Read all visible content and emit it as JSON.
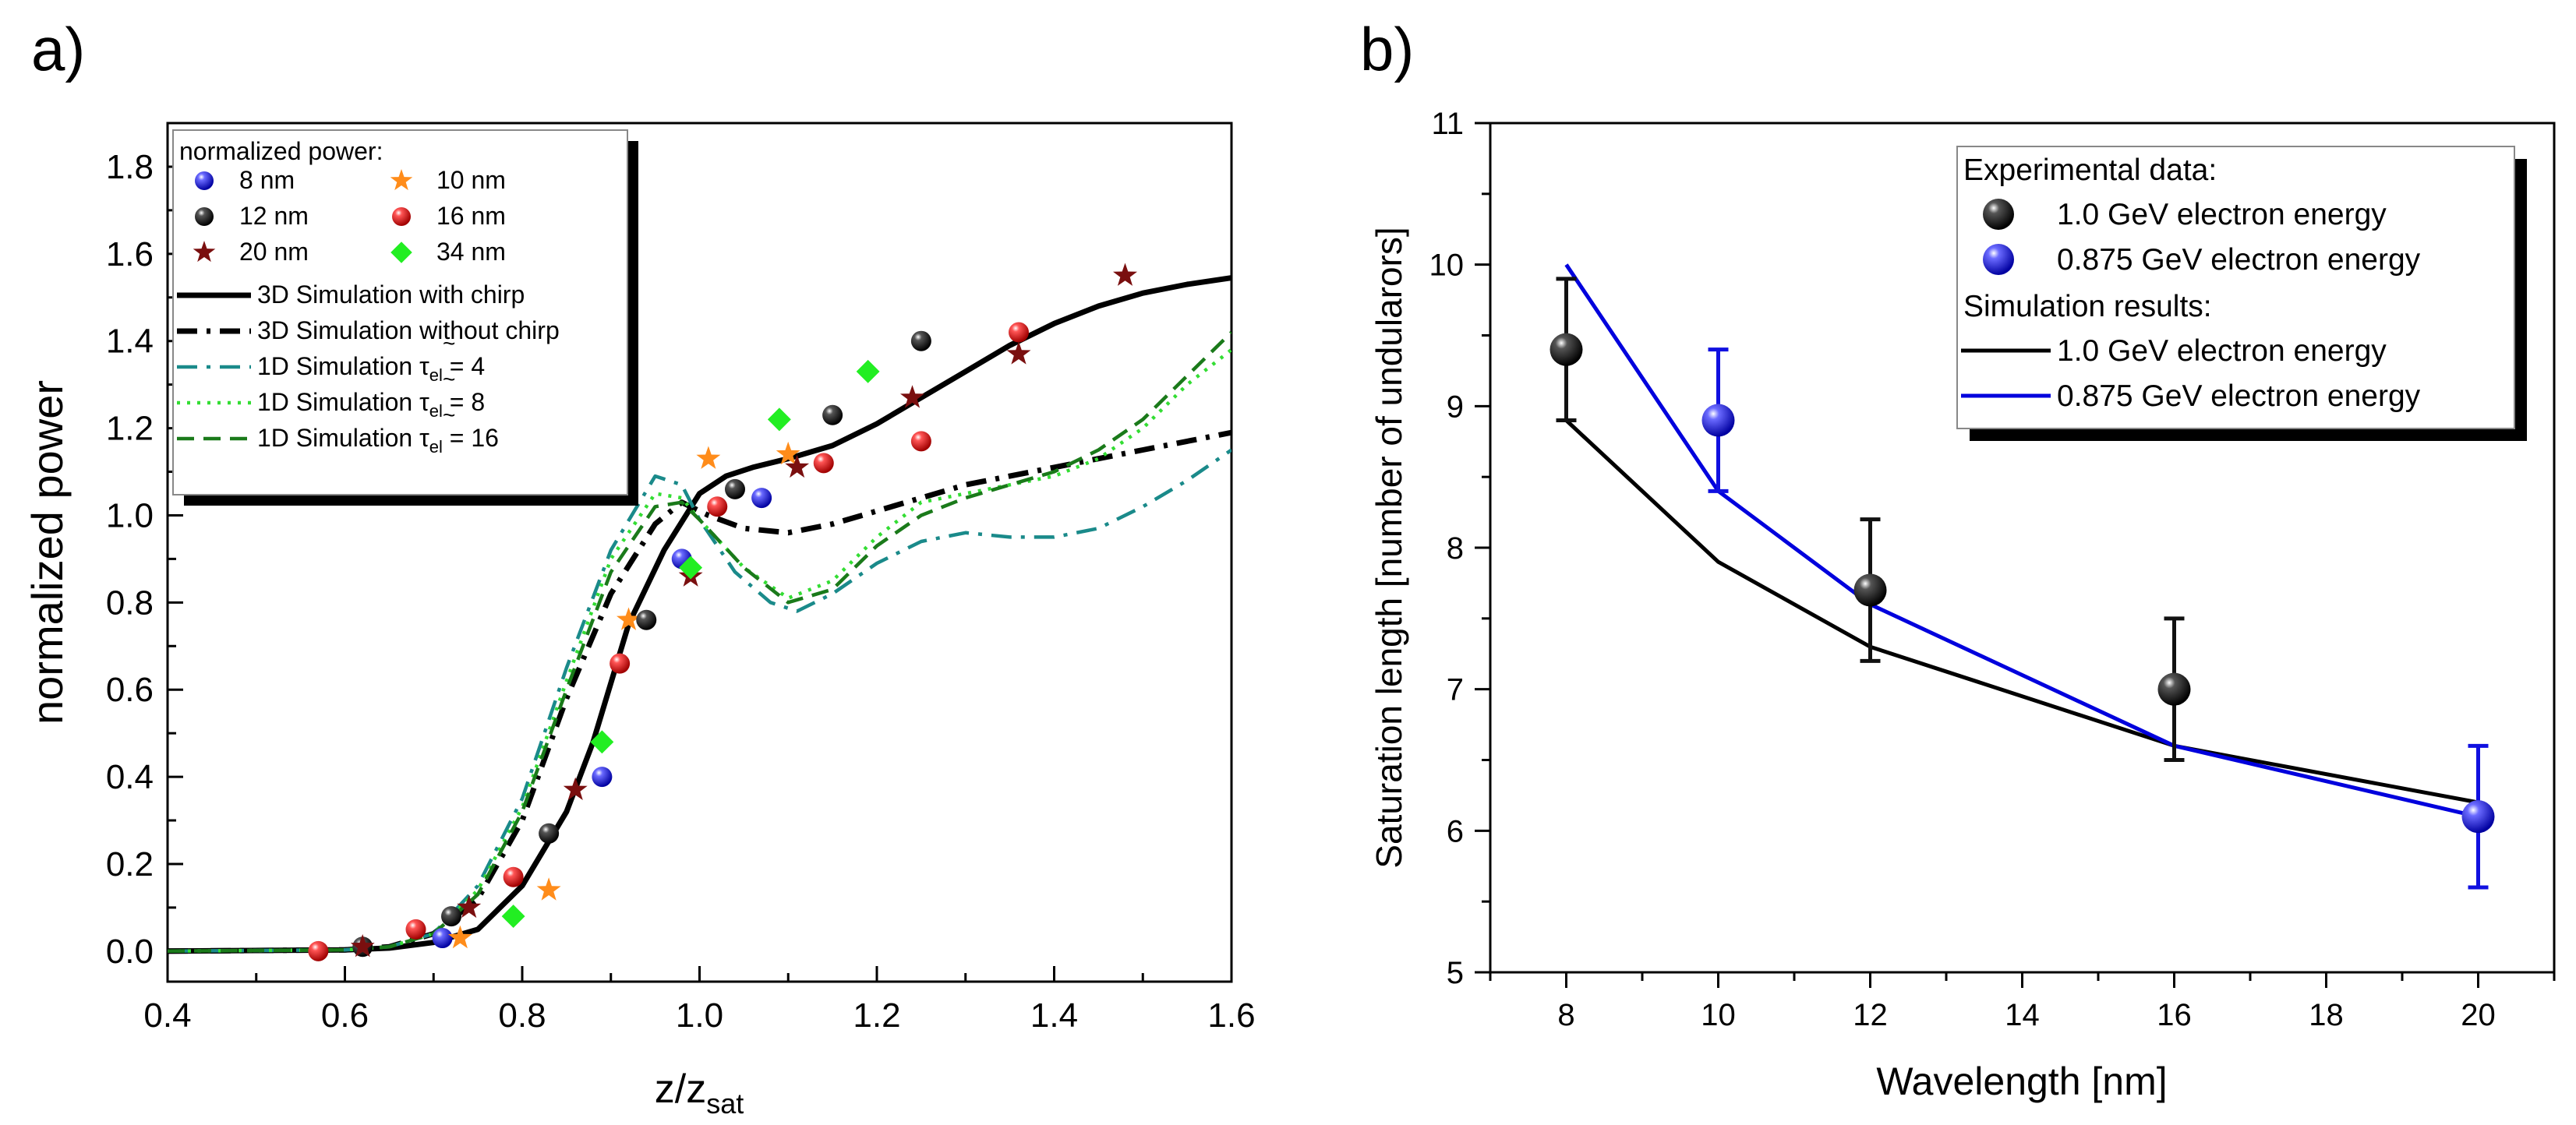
{
  "panels": {
    "a": {
      "label": "a)"
    },
    "b": {
      "label": "b)"
    }
  },
  "chart_data": [
    {
      "type": "scatter",
      "panel": "a)",
      "xlabel": "z/z",
      "xlabel_sub": "sat",
      "ylabel": "normalized power",
      "xlim": [
        0.4,
        1.6
      ],
      "ylim": [
        -0.07,
        1.9
      ],
      "xticks": [
        "0.4",
        "0.6",
        "0.8",
        "1.0",
        "1.2",
        "1.4",
        "1.6"
      ],
      "yticks": [
        "0.0",
        "0.2",
        "0.4",
        "0.6",
        "0.8",
        "1.0",
        "1.2",
        "1.4",
        "1.6",
        "1.8"
      ],
      "legend_title": "normalized power:",
      "legend_position": "top-left",
      "scatter_series": [
        {
          "name": "8 nm",
          "marker": "ball",
          "color": "#1010e0",
          "points": [
            [
              0.71,
              0.03
            ],
            [
              0.89,
              0.4
            ],
            [
              0.98,
              0.9
            ],
            [
              1.07,
              1.04
            ]
          ]
        },
        {
          "name": "10 nm",
          "marker": "star",
          "color": "#ff8c1a",
          "points": [
            [
              0.73,
              0.03
            ],
            [
              0.83,
              0.14
            ],
            [
              0.92,
              0.76
            ],
            [
              1.01,
              1.13
            ],
            [
              1.1,
              1.14
            ]
          ]
        },
        {
          "name": "12 nm",
          "marker": "ball",
          "color": "#111111",
          "points": [
            [
              0.62,
              0.01
            ],
            [
              0.72,
              0.08
            ],
            [
              0.83,
              0.27
            ],
            [
              0.94,
              0.76
            ],
            [
              1.04,
              1.06
            ],
            [
              1.15,
              1.23
            ],
            [
              1.25,
              1.4
            ]
          ]
        },
        {
          "name": "16 nm",
          "marker": "ball",
          "color": "#ee1111",
          "points": [
            [
              0.57,
              0.0
            ],
            [
              0.68,
              0.05
            ],
            [
              0.79,
              0.17
            ],
            [
              0.91,
              0.66
            ],
            [
              1.02,
              1.02
            ],
            [
              1.14,
              1.12
            ],
            [
              1.25,
              1.17
            ],
            [
              1.36,
              1.42
            ]
          ]
        },
        {
          "name": "20 nm",
          "marker": "star",
          "color": "#7a0f0f",
          "points": [
            [
              0.62,
              0.01
            ],
            [
              0.74,
              0.1
            ],
            [
              0.86,
              0.37
            ],
            [
              0.99,
              0.86
            ],
            [
              1.11,
              1.11
            ],
            [
              1.24,
              1.27
            ],
            [
              1.36,
              1.37
            ],
            [
              1.48,
              1.55
            ]
          ]
        },
        {
          "name": "34 nm",
          "marker": "diamond",
          "color": "#22ee22",
          "points": [
            [
              0.79,
              0.08
            ],
            [
              0.89,
              0.48
            ],
            [
              0.99,
              0.88
            ],
            [
              1.09,
              1.22
            ],
            [
              1.19,
              1.33
            ]
          ]
        }
      ],
      "line_series": [
        {
          "name": "3D Simulation with chirp",
          "dash": "solid",
          "color": "#000000",
          "points": [
            [
              0.4,
              0
            ],
            [
              0.6,
              0.003
            ],
            [
              0.65,
              0.007
            ],
            [
              0.7,
              0.02
            ],
            [
              0.75,
              0.05
            ],
            [
              0.8,
              0.15
            ],
            [
              0.85,
              0.32
            ],
            [
              0.88,
              0.48
            ],
            [
              0.92,
              0.75
            ],
            [
              0.96,
              0.92
            ],
            [
              1.0,
              1.05
            ],
            [
              1.03,
              1.09
            ],
            [
              1.06,
              1.11
            ],
            [
              1.1,
              1.13
            ],
            [
              1.15,
              1.16
            ],
            [
              1.2,
              1.21
            ],
            [
              1.25,
              1.27
            ],
            [
              1.3,
              1.33
            ],
            [
              1.35,
              1.39
            ],
            [
              1.4,
              1.44
            ],
            [
              1.45,
              1.48
            ],
            [
              1.5,
              1.51
            ],
            [
              1.55,
              1.53
            ],
            [
              1.6,
              1.545
            ]
          ]
        },
        {
          "name": "3D Simulation without chirp",
          "dash": "dashdot",
          "color": "#000000",
          "points": [
            [
              0.4,
              0
            ],
            [
              0.6,
              0.003
            ],
            [
              0.65,
              0.01
            ],
            [
              0.7,
              0.04
            ],
            [
              0.75,
              0.12
            ],
            [
              0.8,
              0.3
            ],
            [
              0.85,
              0.58
            ],
            [
              0.9,
              0.82
            ],
            [
              0.95,
              0.98
            ],
            [
              0.98,
              1.03
            ],
            [
              1.01,
              1.0
            ],
            [
              1.05,
              0.97
            ],
            [
              1.1,
              0.96
            ],
            [
              1.15,
              0.98
            ],
            [
              1.2,
              1.01
            ],
            [
              1.25,
              1.04
            ],
            [
              1.3,
              1.07
            ],
            [
              1.35,
              1.09
            ],
            [
              1.4,
              1.11
            ],
            [
              1.45,
              1.13
            ],
            [
              1.5,
              1.15
            ],
            [
              1.55,
              1.17
            ],
            [
              1.6,
              1.19
            ]
          ]
        },
        {
          "name": "1D Simulation ",
          "param": "4",
          "dash": "dashdot",
          "color": "#1a8a8a",
          "points": [
            [
              0.4,
              0
            ],
            [
              0.6,
              0.003
            ],
            [
              0.65,
              0.01
            ],
            [
              0.7,
              0.04
            ],
            [
              0.75,
              0.15
            ],
            [
              0.8,
              0.35
            ],
            [
              0.85,
              0.65
            ],
            [
              0.9,
              0.92
            ],
            [
              0.95,
              1.09
            ],
            [
              0.98,
              1.07
            ],
            [
              1.0,
              0.99
            ],
            [
              1.04,
              0.87
            ],
            [
              1.08,
              0.8
            ],
            [
              1.11,
              0.78
            ],
            [
              1.15,
              0.82
            ],
            [
              1.2,
              0.89
            ],
            [
              1.25,
              0.94
            ],
            [
              1.3,
              0.96
            ],
            [
              1.35,
              0.95
            ],
            [
              1.4,
              0.95
            ],
            [
              1.45,
              0.97
            ],
            [
              1.5,
              1.02
            ],
            [
              1.55,
              1.08
            ],
            [
              1.6,
              1.15
            ]
          ]
        },
        {
          "name": "1D Simulation ",
          "param": "8",
          "dash": "dotted",
          "color": "#33dd33",
          "points": [
            [
              0.4,
              0
            ],
            [
              0.6,
              0.003
            ],
            [
              0.65,
              0.01
            ],
            [
              0.7,
              0.04
            ],
            [
              0.75,
              0.14
            ],
            [
              0.8,
              0.33
            ],
            [
              0.85,
              0.62
            ],
            [
              0.9,
              0.9
            ],
            [
              0.95,
              1.05
            ],
            [
              0.98,
              1.04
            ],
            [
              1.0,
              0.99
            ],
            [
              1.05,
              0.88
            ],
            [
              1.1,
              0.81
            ],
            [
              1.15,
              0.85
            ],
            [
              1.2,
              0.95
            ],
            [
              1.25,
              1.03
            ],
            [
              1.3,
              1.05
            ],
            [
              1.35,
              1.07
            ],
            [
              1.4,
              1.09
            ],
            [
              1.45,
              1.13
            ],
            [
              1.5,
              1.2
            ],
            [
              1.55,
              1.3
            ],
            [
              1.6,
              1.38
            ]
          ]
        },
        {
          "name": "1D Simulation ",
          "param": "16",
          "dash": "dashed",
          "color": "#1a7a1a",
          "points": [
            [
              0.4,
              0
            ],
            [
              0.6,
              0.003
            ],
            [
              0.65,
              0.01
            ],
            [
              0.7,
              0.04
            ],
            [
              0.75,
              0.13
            ],
            [
              0.8,
              0.32
            ],
            [
              0.85,
              0.6
            ],
            [
              0.9,
              0.87
            ],
            [
              0.95,
              1.02
            ],
            [
              0.98,
              1.03
            ],
            [
              1.0,
              0.99
            ],
            [
              1.05,
              0.88
            ],
            [
              1.1,
              0.8
            ],
            [
              1.15,
              0.83
            ],
            [
              1.2,
              0.93
            ],
            [
              1.25,
              1.0
            ],
            [
              1.3,
              1.04
            ],
            [
              1.35,
              1.07
            ],
            [
              1.4,
              1.1
            ],
            [
              1.45,
              1.15
            ],
            [
              1.5,
              1.22
            ],
            [
              1.55,
              1.32
            ],
            [
              1.6,
              1.42
            ]
          ]
        }
      ],
      "param_symbol": "τ",
      "param_sub": "el",
      "param_eq": " = "
    },
    {
      "type": "line",
      "panel": "b)",
      "xlabel": "Wavelength [nm]",
      "ylabel": "Saturation length [number of undularors]",
      "xlim": [
        7,
        21
      ],
      "ylim": [
        5,
        11
      ],
      "xticks": [
        "8",
        "10",
        "12",
        "14",
        "16",
        "18",
        "20"
      ],
      "yticks": [
        "5",
        "6",
        "7",
        "8",
        "9",
        "10",
        "11"
      ],
      "legend_position": "top-right",
      "legend_header_exp": "Experimental data:",
      "legend_header_sim": "Simulation results:",
      "experimental": [
        {
          "name": "1.0 GeV electron energy",
          "color": "#111111",
          "points": [
            {
              "x": 8,
              "y": 9.4,
              "err": 0.5
            },
            {
              "x": 12,
              "y": 7.7,
              "err": 0.5
            },
            {
              "x": 16,
              "y": 7.0,
              "err": 0.5
            }
          ]
        },
        {
          "name": "0.875 GeV electron energy",
          "color": "#1010e0",
          "points": [
            {
              "x": 10,
              "y": 8.9,
              "err": 0.5
            },
            {
              "x": 20,
              "y": 6.1,
              "err": 0.5
            }
          ]
        }
      ],
      "simulation": [
        {
          "name": "1.0 GeV electron energy",
          "color": "#000000",
          "x": [
            8,
            10,
            12,
            16,
            20
          ],
          "y": [
            8.9,
            7.9,
            7.3,
            6.6,
            6.2
          ]
        },
        {
          "name": "0.875 GeV electron energy",
          "color": "#0000dd",
          "x": [
            8,
            10,
            12,
            16,
            20
          ],
          "y": [
            10.0,
            8.4,
            7.6,
            6.6,
            6.1
          ]
        }
      ]
    }
  ]
}
